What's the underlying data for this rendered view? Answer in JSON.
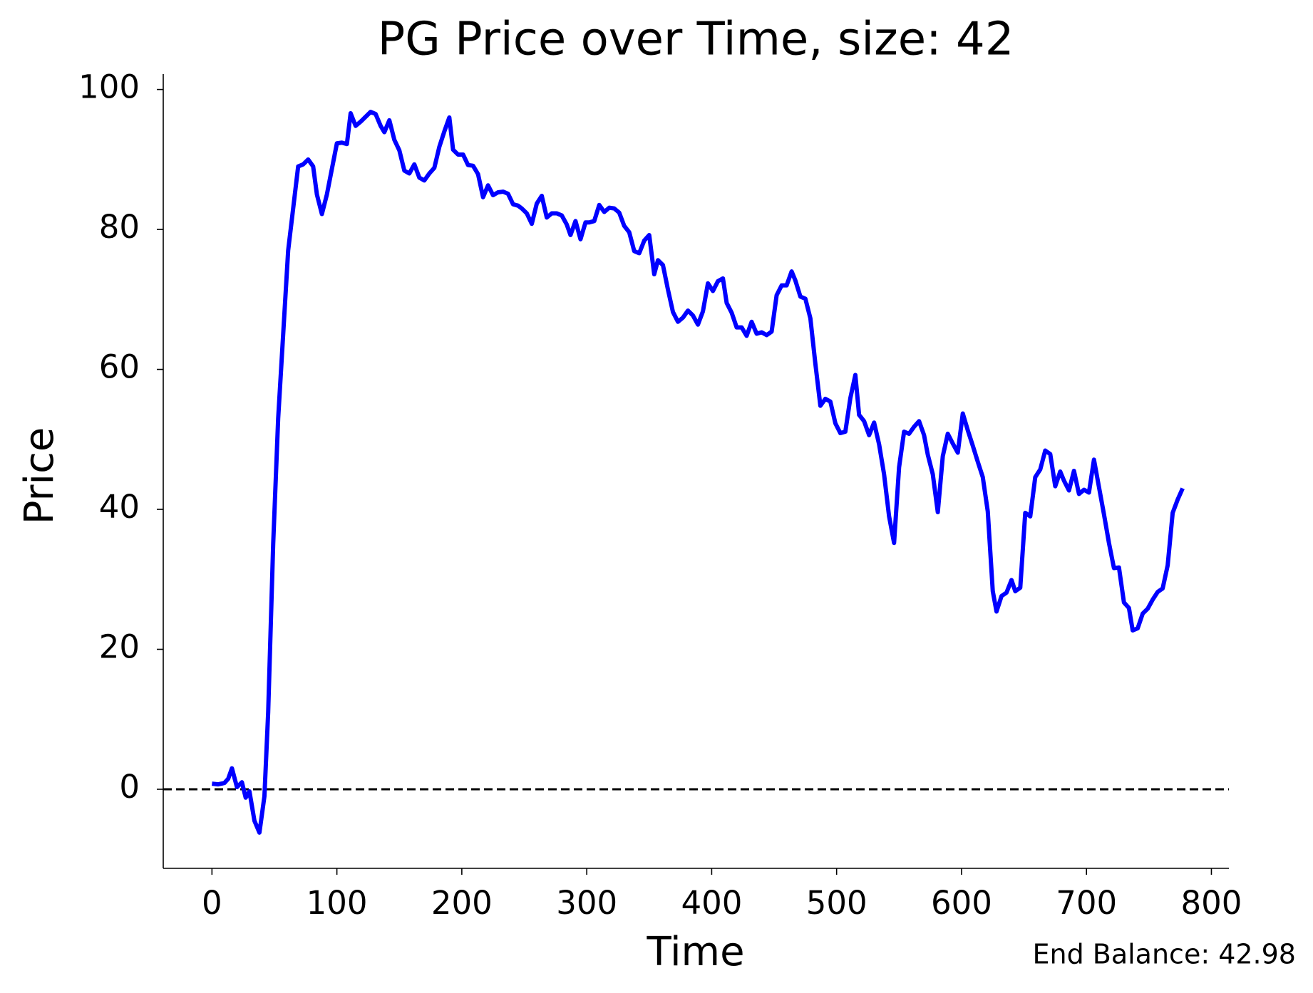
{
  "chart_data": {
    "type": "line",
    "title": "PG Price over Time, size: 42",
    "x_label": "Time",
    "y_label": "Price",
    "annotation": "End Balance: 42.98",
    "x": [
      0,
      5,
      10,
      13,
      16,
      20,
      24,
      27,
      30,
      34,
      38,
      42,
      45,
      49,
      53,
      57,
      61,
      69,
      73,
      77,
      81,
      84,
      88,
      92,
      100,
      104,
      108,
      111,
      115,
      119,
      123,
      127,
      131,
      135,
      138,
      142,
      146,
      150,
      154,
      158,
      162,
      166,
      170,
      174,
      178,
      182,
      186,
      190,
      193,
      197,
      201,
      205,
      209,
      213,
      217,
      221,
      225,
      229,
      233,
      237,
      241,
      245,
      248,
      252,
      256,
      260,
      264,
      268,
      272,
      276,
      280,
      284,
      287,
      291,
      295,
      299,
      302,
      306,
      310,
      314,
      318,
      322,
      326,
      330,
      334,
      338,
      342,
      346,
      350,
      354,
      357,
      361,
      365,
      369,
      373,
      377,
      381,
      385,
      389,
      393,
      397,
      401,
      405,
      409,
      412,
      416,
      420,
      424,
      428,
      432,
      436,
      440,
      444,
      448,
      452,
      456,
      460,
      464,
      467,
      471,
      475,
      479,
      483,
      487,
      491,
      495,
      499,
      503,
      507,
      511,
      515,
      518,
      522,
      526,
      530,
      534,
      538,
      542,
      546,
      550,
      554,
      558,
      562,
      566,
      570,
      573,
      577,
      581,
      585,
      589,
      593,
      597,
      601,
      605,
      609,
      613,
      617,
      621,
      625,
      628,
      632,
      636,
      640,
      643,
      647,
      651,
      655,
      659,
      663,
      667,
      671,
      675,
      679,
      682,
      686,
      690,
      694,
      698,
      702,
      706,
      710,
      714,
      718,
      722,
      726,
      730,
      734,
      737,
      741,
      745,
      749,
      753,
      757,
      761,
      765,
      769,
      773,
      777
    ],
    "series": [
      {
        "name": "Price",
        "color": "#0000ff",
        "values": [
          0.8,
          0.7,
          0.9,
          1.5,
          3.0,
          0.3,
          1.0,
          -1.2,
          -0.3,
          -4.5,
          -6.2,
          -1,
          11,
          35,
          53,
          65,
          77,
          89,
          89.3,
          90,
          89,
          85,
          82.2,
          85,
          92.3,
          92.4,
          92.2,
          96.6,
          94.8,
          95.4,
          96.1,
          96.8,
          96.5,
          94.8,
          93.9,
          95.6,
          92.8,
          91.3,
          88.4,
          88,
          89.3,
          87.4,
          87,
          88,
          88.8,
          91.8,
          94,
          96,
          91.4,
          90.7,
          90.7,
          89.2,
          89.1,
          87.9,
          84.6,
          86.3,
          84.9,
          85.3,
          85.4,
          85.1,
          83.6,
          83.4,
          83,
          82.3,
          80.8,
          83.7,
          84.8,
          81.7,
          82.3,
          82.3,
          82,
          80.7,
          79.2,
          81.2,
          78.6,
          81,
          81,
          81.2,
          83.5,
          82.5,
          83.1,
          83,
          82.4,
          80.5,
          79.6,
          76.9,
          76.6,
          78.4,
          79.2,
          73.6,
          75.6,
          74.9,
          71.4,
          68.2,
          66.8,
          67.4,
          68.4,
          67.7,
          66.4,
          68.3,
          72.3,
          71.2,
          72.6,
          73,
          69.5,
          68.1,
          66,
          66,
          64.8,
          66.8,
          65.1,
          65.3,
          64.9,
          65.4,
          70.6,
          72,
          72,
          74,
          72.7,
          70.4,
          70.1,
          67.3,
          60.8,
          54.8,
          55.8,
          55.4,
          52.3,
          50.9,
          51.1,
          55.9,
          59.2,
          53.5,
          52.6,
          50.6,
          52.4,
          49.3,
          45,
          39,
          35.2,
          46,
          51.1,
          50.8,
          51.8,
          52.6,
          50.6,
          47.8,
          45,
          39.6,
          47.6,
          50.8,
          49.4,
          48.1,
          53.7,
          51.3,
          49.1,
          46.8,
          44.6,
          39.7,
          28.3,
          25.4,
          27.6,
          28.1,
          29.9,
          28.3,
          28.8,
          39.5,
          39,
          44.6,
          45.7,
          48.4,
          47.9,
          43.3,
          45.4,
          44.1,
          42.7,
          45.5,
          42.2,
          42.8,
          42.4,
          47.1,
          43.2,
          39.3,
          35.2,
          31.6,
          31.7,
          26.7,
          25.9,
          22.7,
          23,
          25.1,
          25.8,
          27.1,
          28.2,
          28.7,
          32,
          39.5,
          41.4,
          43
        ]
      }
    ],
    "reference_line": {
      "value": 0,
      "color": "#000000",
      "style": "dashed"
    },
    "xlim": [
      -39,
      814
    ],
    "ylim": [
      -11.3,
      102.2
    ],
    "xticks": [
      0,
      100,
      200,
      300,
      400,
      500,
      600,
      700,
      800
    ],
    "yticks": [
      0,
      20,
      40,
      60,
      80,
      100
    ]
  }
}
